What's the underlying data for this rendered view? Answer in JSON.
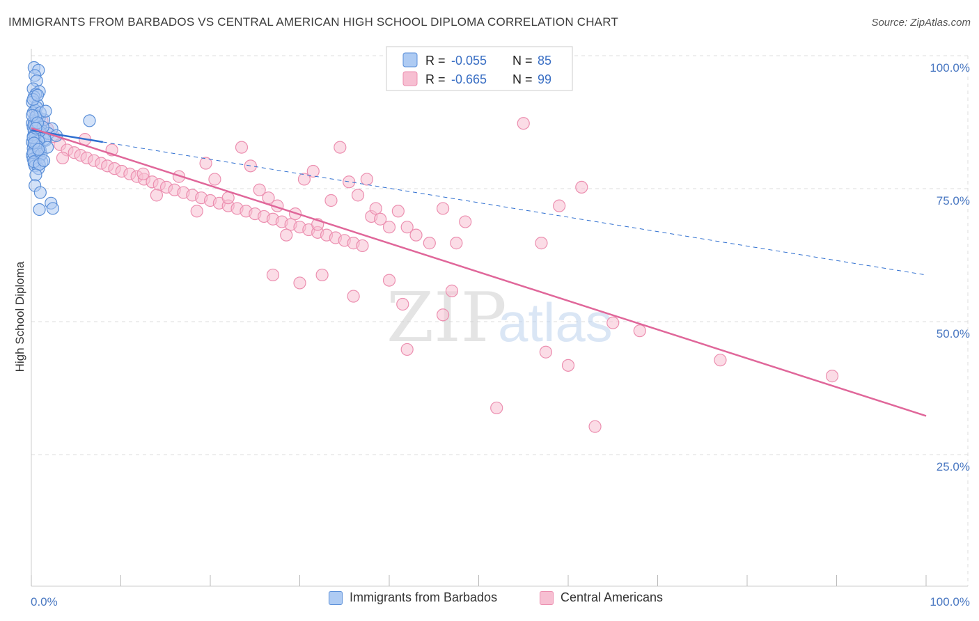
{
  "title": "IMMIGRANTS FROM BARBADOS VS CENTRAL AMERICAN HIGH SCHOOL DIPLOMA CORRELATION CHART",
  "source": "Source: ZipAtlas.com",
  "watermark": {
    "zip": "ZIP",
    "atlas": "atlas"
  },
  "colors": {
    "blue_fill": "#aecbf3",
    "blue_stroke": "#5b8fd8",
    "blue_line": "#2f6fd0",
    "pink_fill": "#f7bfd2",
    "pink_stroke": "#ec8fb0",
    "pink_line": "#e0679a",
    "tick_text": "#4a78c2",
    "grid": "#dddddd"
  },
  "legend": {
    "rows": [
      {
        "r_label": "R =",
        "r_value": "-0.055",
        "n_label": "N =",
        "n_value": "85",
        "color": "blue"
      },
      {
        "r_label": "R =",
        "r_value": "-0.665",
        "n_label": "N =",
        "n_value": "99",
        "color": "pink"
      }
    ]
  },
  "bottom_legend": [
    {
      "label": "Immigrants from Barbados",
      "color": "blue"
    },
    {
      "label": "Central Americans",
      "color": "pink"
    }
  ],
  "chart_data": {
    "type": "scatter",
    "ylabel": "High School Diploma",
    "xlabel": "",
    "x_ticks": [
      "0.0%",
      "100.0%"
    ],
    "y_ticks": [
      "100.0%",
      "75.0%",
      "50.0%",
      "25.0%"
    ],
    "y_tick_values": [
      100,
      75,
      50,
      25
    ],
    "xlim": [
      0,
      100
    ],
    "ylim": [
      0,
      102
    ],
    "grid": true,
    "series": [
      {
        "name": "Immigrants from Barbados",
        "color": "blue",
        "trend": {
          "x": [
            0,
            8
          ],
          "y": [
            88.2,
            86.0
          ],
          "style": "solid"
        },
        "trend_ext": {
          "x": [
            8,
            100
          ],
          "y": [
            86.0,
            61.0
          ],
          "style": "dashed"
        },
        "points": [
          [
            0.3,
            100
          ],
          [
            0.8,
            99.5
          ],
          [
            0.4,
            98.5
          ],
          [
            0.6,
            97.5
          ],
          [
            0.2,
            96
          ],
          [
            0.9,
            95.5
          ],
          [
            0.5,
            95
          ],
          [
            0.3,
            94.5
          ],
          [
            0.1,
            93.5
          ],
          [
            0.7,
            93
          ],
          [
            0.4,
            92
          ],
          [
            0.2,
            91.5
          ],
          [
            0.6,
            91
          ],
          [
            0.9,
            90.5
          ],
          [
            0.3,
            90
          ],
          [
            0.5,
            89.8
          ],
          [
            0.1,
            89.5
          ],
          [
            0.8,
            89.2
          ],
          [
            0.4,
            89
          ],
          [
            0.2,
            88.8
          ],
          [
            0.6,
            88.5
          ],
          [
            1.1,
            88.3
          ],
          [
            0.3,
            88
          ],
          [
            0.7,
            87.8
          ],
          [
            0.5,
            87.5
          ],
          [
            1.3,
            87.3
          ],
          [
            0.2,
            87
          ],
          [
            0.9,
            86.8
          ],
          [
            0.4,
            86.5
          ],
          [
            1.6,
            86.3
          ],
          [
            0.1,
            86
          ],
          [
            0.6,
            85.8
          ],
          [
            0.3,
            85.5
          ],
          [
            0.8,
            85.2
          ],
          [
            0.5,
            85
          ],
          [
            0.2,
            84.8
          ],
          [
            1.0,
            84.5
          ],
          [
            0.4,
            84.2
          ],
          [
            0.7,
            84
          ],
          [
            0.3,
            83.8
          ],
          [
            0.1,
            83.5
          ],
          [
            0.6,
            83.2
          ],
          [
            0.9,
            83
          ],
          [
            0.2,
            82.8
          ],
          [
            0.5,
            82.5
          ],
          [
            1.2,
            82.2
          ],
          [
            0.3,
            82
          ],
          [
            0.4,
            81.5
          ],
          [
            0.8,
            81
          ],
          [
            2.3,
            88.5
          ],
          [
            1.9,
            87.6
          ],
          [
            2.8,
            87.2
          ],
          [
            1.4,
            90.2
          ],
          [
            0.6,
            92.5
          ],
          [
            1.0,
            91.5
          ],
          [
            0.2,
            94
          ],
          [
            0.7,
            94.8
          ],
          [
            1.5,
            86.5
          ],
          [
            0.9,
            88
          ],
          [
            0.3,
            89.3
          ],
          [
            0.5,
            90.8
          ],
          [
            0.1,
            91
          ],
          [
            0.4,
            87.2
          ],
          [
            0.8,
            86.2
          ],
          [
            0.6,
            85.3
          ],
          [
            0.2,
            84
          ],
          [
            1.1,
            83.7
          ],
          [
            0.3,
            82.3
          ],
          [
            0.9,
            81.8
          ],
          [
            1.4,
            82.5
          ],
          [
            0.5,
            79.8
          ],
          [
            0.4,
            77.8
          ],
          [
            1.0,
            76.5
          ],
          [
            2.2,
            74.5
          ],
          [
            2.4,
            73.5
          ],
          [
            0.9,
            73.3
          ],
          [
            6.5,
            90
          ],
          [
            1.8,
            85
          ],
          [
            1.3,
            88.8
          ],
          [
            0.7,
            89.6
          ],
          [
            1.6,
            91.8
          ],
          [
            0.2,
            86.8
          ],
          [
            0.5,
            88.6
          ],
          [
            0.3,
            85.8
          ],
          [
            0.8,
            84.6
          ]
        ]
      },
      {
        "name": "Central Americans",
        "color": "pink",
        "trend": {
          "x": [
            0,
            100
          ],
          "y": [
            88.6,
            34.5
          ],
          "style": "solid"
        },
        "points": [
          [
            0.5,
            91
          ],
          [
            1.2,
            90
          ],
          [
            1.8,
            88.5
          ],
          [
            2.5,
            87
          ],
          [
            3.2,
            85.5
          ],
          [
            4.0,
            84.5
          ],
          [
            4.8,
            84
          ],
          [
            5.5,
            83.5
          ],
          [
            6.2,
            83
          ],
          [
            7.0,
            82.5
          ],
          [
            7.8,
            82
          ],
          [
            8.5,
            81.5
          ],
          [
            9.3,
            81
          ],
          [
            10.1,
            80.5
          ],
          [
            11.0,
            80
          ],
          [
            11.8,
            79.5
          ],
          [
            12.6,
            79
          ],
          [
            13.5,
            78.5
          ],
          [
            14.3,
            78
          ],
          [
            15.1,
            77.5
          ],
          [
            16.0,
            77
          ],
          [
            17.0,
            76.5
          ],
          [
            18.0,
            76
          ],
          [
            19.0,
            75.5
          ],
          [
            20.0,
            75
          ],
          [
            21.0,
            74.5
          ],
          [
            22.0,
            74
          ],
          [
            23.0,
            73.5
          ],
          [
            24.0,
            73
          ],
          [
            25.0,
            72.5
          ],
          [
            26.0,
            72
          ],
          [
            27.0,
            71.5
          ],
          [
            28.0,
            71
          ],
          [
            29.0,
            70.5
          ],
          [
            30.0,
            70
          ],
          [
            31.0,
            69.5
          ],
          [
            32.0,
            69
          ],
          [
            33.0,
            68.5
          ],
          [
            34.0,
            68
          ],
          [
            35.0,
            67.5
          ],
          [
            36.0,
            67
          ],
          [
            37.0,
            66.5
          ],
          [
            6.0,
            86.5
          ],
          [
            3.5,
            83
          ],
          [
            9.0,
            84.5
          ],
          [
            12.5,
            80
          ],
          [
            14.0,
            76
          ],
          [
            16.5,
            79.5
          ],
          [
            18.5,
            73
          ],
          [
            19.5,
            82
          ],
          [
            20.5,
            79
          ],
          [
            22.0,
            75.5
          ],
          [
            23.5,
            85
          ],
          [
            24.5,
            81.5
          ],
          [
            25.5,
            77
          ],
          [
            26.5,
            75.5
          ],
          [
            27.5,
            74
          ],
          [
            28.5,
            68.5
          ],
          [
            29.5,
            72.5
          ],
          [
            30.5,
            79
          ],
          [
            31.5,
            80.5
          ],
          [
            32.0,
            70.5
          ],
          [
            33.5,
            75
          ],
          [
            34.5,
            85
          ],
          [
            35.5,
            78.5
          ],
          [
            36.5,
            76
          ],
          [
            37.5,
            79
          ],
          [
            38.0,
            72
          ],
          [
            38.5,
            73.5
          ],
          [
            39.0,
            71.5
          ],
          [
            40.0,
            70
          ],
          [
            41.0,
            73
          ],
          [
            42.0,
            70
          ],
          [
            43.0,
            68.5
          ],
          [
            44.5,
            67
          ],
          [
            46.0,
            73.5
          ],
          [
            47.5,
            67
          ],
          [
            48.5,
            71
          ],
          [
            50.0,
            98
          ],
          [
            55.0,
            89.5
          ],
          [
            57.0,
            67
          ],
          [
            59.0,
            74
          ],
          [
            61.5,
            77.5
          ],
          [
            30.0,
            59.5
          ],
          [
            36.0,
            57
          ],
          [
            40.0,
            60
          ],
          [
            27.0,
            61
          ],
          [
            32.5,
            61
          ],
          [
            47.0,
            58
          ],
          [
            42.0,
            47
          ],
          [
            41.5,
            55.5
          ],
          [
            46.0,
            53.5
          ],
          [
            52.0,
            36
          ],
          [
            57.5,
            46.5
          ],
          [
            60.0,
            44
          ],
          [
            65.0,
            52
          ],
          [
            68.0,
            50.5
          ],
          [
            63.0,
            32.5
          ],
          [
            77.0,
            45
          ],
          [
            89.5,
            42
          ]
        ]
      }
    ]
  }
}
